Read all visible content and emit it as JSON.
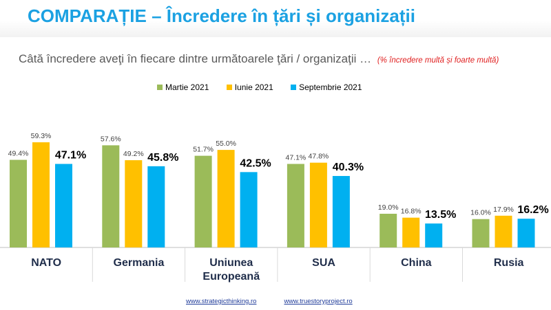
{
  "title": "COMPARAȚIE – Încredere în țări și organizații",
  "subtitle": "Câtă încredere aveţi în fiecare dintre următoarele ţări / organizaţii …",
  "subtitle_note": "(% încredere multă și foarte multă)",
  "footer": {
    "link1": "www.strategicthinking.ro",
    "link2": "www.truestoryproject.ro"
  },
  "chart_data": {
    "type": "bar",
    "categories": [
      "NATO",
      "Germania",
      "Uniunea Europeană",
      "SUA",
      "China",
      "Rusia"
    ],
    "category_lines": [
      [
        "NATO"
      ],
      [
        "Germania"
      ],
      [
        "Uniunea",
        "Europeană"
      ],
      [
        "SUA"
      ],
      [
        "China"
      ],
      [
        "Rusia"
      ]
    ],
    "series": [
      {
        "name": "Martie 2021",
        "color": "#9bbb59",
        "values": [
          49.4,
          57.6,
          51.7,
          47.1,
          19.0,
          16.0
        ]
      },
      {
        "name": "Iunie 2021",
        "color": "#ffc000",
        "values": [
          59.3,
          49.2,
          55.0,
          47.8,
          16.8,
          17.9
        ]
      },
      {
        "name": "Septembrie 2021",
        "color": "#00b0f0",
        "values": [
          47.1,
          45.8,
          42.5,
          40.3,
          13.5,
          16.2
        ]
      }
    ],
    "value_suffix": "%",
    "ylim": [
      0,
      65
    ],
    "grid": false,
    "legend_position": "top"
  }
}
